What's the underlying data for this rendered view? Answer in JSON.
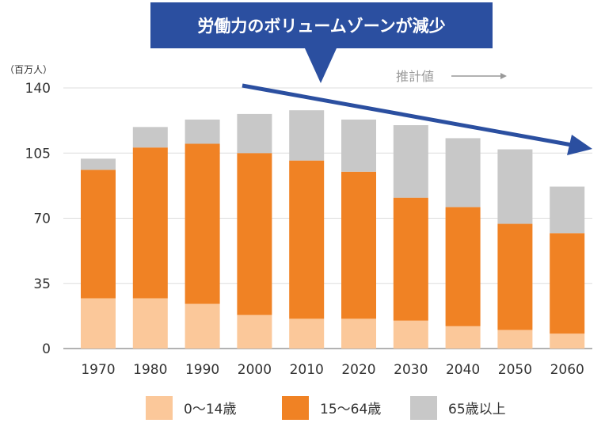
{
  "chart_data": {
    "type": "bar",
    "stacked": true,
    "title": "労働力のボリュームゾーンが減少",
    "unit_label": "（百万人）",
    "projection_label": "推計値",
    "categories": [
      "1970",
      "1980",
      "1990",
      "2000",
      "2010",
      "2020",
      "2030",
      "2040",
      "2050",
      "2060"
    ],
    "series": [
      {
        "name": "0〜14歳",
        "color": "#fbc89a",
        "values": [
          27,
          27,
          24,
          18,
          16,
          16,
          15,
          12,
          10,
          8
        ]
      },
      {
        "name": "15〜64歳",
        "color": "#f08224",
        "values": [
          69,
          81,
          86,
          87,
          85,
          79,
          66,
          64,
          57,
          54
        ]
      },
      {
        "name": "65歳以上",
        "color": "#c8c8c8",
        "values": [
          6,
          11,
          13,
          21,
          27,
          28,
          39,
          37,
          40,
          25
        ]
      }
    ],
    "ylim": [
      0,
      140
    ],
    "yticks": [
      0,
      35,
      70,
      105,
      140
    ],
    "grid": true,
    "legend_position": "bottom",
    "colors": {
      "banner": "#2b4fa0",
      "trend_arrow": "#2b4fa0",
      "axis": "#999999"
    }
  }
}
